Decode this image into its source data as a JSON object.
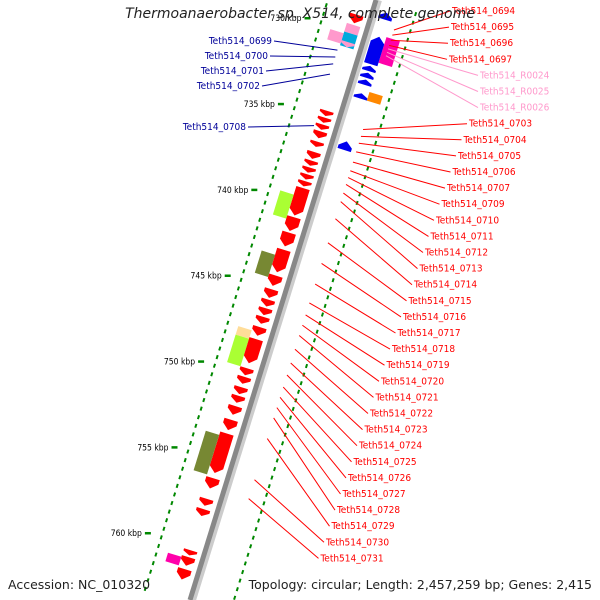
{
  "title": "Thermoanaerobacter sp. X514, complete genome",
  "footer": {
    "accession": "Accession: NC_010320",
    "summary": "Topology: circular; Length: 2,457,259 bp; Genes: 2,415"
  },
  "colors": {
    "red": "#ff0000",
    "blue": "#0000ee",
    "navy": "#000099",
    "pink": "#ff99cc",
    "magenta": "#ff00aa",
    "orange": "#ff8800",
    "cyan": "#00aadd",
    "lime": "#aaff33",
    "olive": "#778833",
    "peach": "#ffdd99",
    "tick": "#008800",
    "backbone": "#888888"
  },
  "kbp_ticks": [
    {
      "label": "730 kbp",
      "kbp": 730
    },
    {
      "label": "735 kbp",
      "kbp": 735
    },
    {
      "label": "740 kbp",
      "kbp": 740
    },
    {
      "label": "745 kbp",
      "kbp": 745
    },
    {
      "label": "750 kbp",
      "kbp": 750
    },
    {
      "label": "755 kbp",
      "kbp": 755
    },
    {
      "label": "760 kbp",
      "kbp": 760
    }
  ],
  "left_labels": [
    {
      "text": "Teth514_0699",
      "target_kbp": 731.2
    },
    {
      "text": "Teth514_0700",
      "target_kbp": 731.6
    },
    {
      "text": "Teth514_0701",
      "target_kbp": 732.0
    },
    {
      "text": "Teth514_0702",
      "target_kbp": 732.6
    },
    {
      "text": "Teth514_0708",
      "target_kbp": 735.6
    }
  ],
  "right_labels": [
    {
      "text": "Teth514_0694",
      "color": "red",
      "target_kbp": 729.2
    },
    {
      "text": "Teth514_0695",
      "color": "red",
      "target_kbp": 729.5
    },
    {
      "text": "Teth514_0696",
      "color": "red",
      "target_kbp": 729.8
    },
    {
      "text": "Teth514_0697",
      "color": "red",
      "target_kbp": 730.1
    },
    {
      "text": "Teth514_R0024",
      "color": "pink",
      "target_kbp": 730.3
    },
    {
      "text": "Teth514_R0025",
      "color": "pink",
      "target_kbp": 730.5
    },
    {
      "text": "Teth514_R0026",
      "color": "pink",
      "target_kbp": 730.7
    },
    {
      "text": "Teth514_0703",
      "color": "red",
      "target_kbp": 735.0
    },
    {
      "text": "Teth514_0704",
      "color": "red",
      "target_kbp": 735.4
    },
    {
      "text": "Teth514_0705",
      "color": "red",
      "target_kbp": 735.8
    },
    {
      "text": "Teth514_0706",
      "color": "red",
      "target_kbp": 736.3
    },
    {
      "text": "Teth514_0707",
      "color": "red",
      "target_kbp": 736.9
    },
    {
      "text": "Teth514_0709",
      "color": "red",
      "target_kbp": 737.4
    },
    {
      "text": "Teth514_0710",
      "color": "red",
      "target_kbp": 737.8
    },
    {
      "text": "Teth514_0711",
      "color": "red",
      "target_kbp": 738.2
    },
    {
      "text": "Teth514_0712",
      "color": "red",
      "target_kbp": 738.7
    },
    {
      "text": "Teth514_0713",
      "color": "red",
      "target_kbp": 739.2
    },
    {
      "text": "Teth514_0714",
      "color": "red",
      "target_kbp": 740.2
    },
    {
      "text": "Teth514_0715",
      "color": "red",
      "target_kbp": 741.6
    },
    {
      "text": "Teth514_0716",
      "color": "red",
      "target_kbp": 742.8
    },
    {
      "text": "Teth514_0717",
      "color": "red",
      "target_kbp": 744.0
    },
    {
      "text": "Teth514_0718",
      "color": "red",
      "target_kbp": 745.1
    },
    {
      "text": "Teth514_0719",
      "color": "red",
      "target_kbp": 745.8
    },
    {
      "text": "Teth514_0720",
      "color": "red",
      "target_kbp": 746.4
    },
    {
      "text": "Teth514_0721",
      "color": "red",
      "target_kbp": 747.0
    },
    {
      "text": "Teth514_0722",
      "color": "red",
      "target_kbp": 747.8
    },
    {
      "text": "Teth514_0723",
      "color": "red",
      "target_kbp": 748.6
    },
    {
      "text": "Teth514_0724",
      "color": "red",
      "target_kbp": 749.3
    },
    {
      "text": "Teth514_0725",
      "color": "red",
      "target_kbp": 750.0
    },
    {
      "text": "Teth514_0726",
      "color": "red",
      "target_kbp": 750.6
    },
    {
      "text": "Teth514_0727",
      "color": "red",
      "target_kbp": 751.2
    },
    {
      "text": "Teth514_0728",
      "color": "red",
      "target_kbp": 751.8
    },
    {
      "text": "Teth514_0729",
      "color": "red",
      "target_kbp": 753.0
    },
    {
      "text": "Teth514_0730",
      "color": "red",
      "target_kbp": 755.4
    },
    {
      "text": "Teth514_0731",
      "color": "red",
      "target_kbp": 756.5
    }
  ],
  "genes": [
    {
      "kbp": 728.4,
      "len": 0.4,
      "strand": 1,
      "color": "blue",
      "shape": "arrow"
    },
    {
      "kbp": 729.0,
      "len": 0.5,
      "strand": -1,
      "color": "red",
      "shape": "arrow"
    },
    {
      "kbp": 729.6,
      "len": 0.5,
      "strand": -1,
      "color": "pink",
      "shape": "box"
    },
    {
      "kbp": 730.1,
      "len": 0.8,
      "strand": -1,
      "color": "cyan",
      "shape": "box"
    },
    {
      "kbp": 730.2,
      "len": 0.6,
      "strand": -2,
      "color": "pink",
      "shape": "box"
    },
    {
      "kbp": 730.6,
      "len": 0.3,
      "strand": -1,
      "color": "pink",
      "shape": "arrow"
    },
    {
      "kbp": 729.7,
      "len": 1.5,
      "strand": 2,
      "color": "magenta",
      "shape": "box"
    },
    {
      "kbp": 729.8,
      "len": 1.6,
      "strand": 1,
      "color": "blue",
      "shape": "arrow"
    },
    {
      "kbp": 731.5,
      "len": 0.3,
      "strand": 1,
      "color": "blue",
      "shape": "arrow"
    },
    {
      "kbp": 731.9,
      "len": 0.3,
      "strand": 1,
      "color": "blue",
      "shape": "arrow"
    },
    {
      "kbp": 732.3,
      "len": 0.3,
      "strand": 1,
      "color": "blue",
      "shape": "arrow"
    },
    {
      "kbp": 732.9,
      "len": 0.5,
      "strand": 2,
      "color": "orange",
      "shape": "box"
    },
    {
      "kbp": 733.1,
      "len": 0.3,
      "strand": 1,
      "color": "blue",
      "shape": "arrow"
    },
    {
      "kbp": 735.9,
      "len": 0.5,
      "strand": 1,
      "color": "blue",
      "shape": "arrow"
    },
    {
      "kbp": 734.6,
      "len": 0.3,
      "strand": -1,
      "color": "red",
      "shape": "arrow"
    },
    {
      "kbp": 735.0,
      "len": 0.3,
      "strand": -1,
      "color": "red",
      "shape": "arrow"
    },
    {
      "kbp": 735.4,
      "len": 0.3,
      "strand": -1,
      "color": "red",
      "shape": "arrow"
    },
    {
      "kbp": 735.8,
      "len": 0.4,
      "strand": -1,
      "color": "red",
      "shape": "arrow"
    },
    {
      "kbp": 736.4,
      "len": 0.3,
      "strand": -1,
      "color": "red",
      "shape": "arrow"
    },
    {
      "kbp": 737.0,
      "len": 0.4,
      "strand": -1,
      "color": "red",
      "shape": "arrow"
    },
    {
      "kbp": 737.5,
      "len": 0.3,
      "strand": -1,
      "color": "red",
      "shape": "arrow"
    },
    {
      "kbp": 737.9,
      "len": 0.3,
      "strand": -1,
      "color": "red",
      "shape": "arrow"
    },
    {
      "kbp": 738.3,
      "len": 0.3,
      "strand": -1,
      "color": "red",
      "shape": "arrow"
    },
    {
      "kbp": 738.7,
      "len": 0.3,
      "strand": -1,
      "color": "red",
      "shape": "arrow"
    },
    {
      "kbp": 739.1,
      "len": 1.6,
      "strand": -1,
      "color": "red",
      "shape": "arrow"
    },
    {
      "kbp": 739.6,
      "len": 1.4,
      "strand": -2,
      "color": "lime",
      "shape": "box"
    },
    {
      "kbp": 740.8,
      "len": 0.8,
      "strand": -1,
      "color": "red",
      "shape": "arrow"
    },
    {
      "kbp": 741.7,
      "len": 0.8,
      "strand": -1,
      "color": "red",
      "shape": "arrow"
    },
    {
      "kbp": 742.7,
      "len": 1.3,
      "strand": -1,
      "color": "red",
      "shape": "arrow"
    },
    {
      "kbp": 743.1,
      "len": 1.3,
      "strand": -2,
      "color": "olive",
      "shape": "box"
    },
    {
      "kbp": 744.2,
      "len": 0.6,
      "strand": -1,
      "color": "red",
      "shape": "arrow"
    },
    {
      "kbp": 745.0,
      "len": 0.5,
      "strand": -1,
      "color": "red",
      "shape": "arrow"
    },
    {
      "kbp": 745.6,
      "len": 0.4,
      "strand": -1,
      "color": "red",
      "shape": "arrow"
    },
    {
      "kbp": 746.1,
      "len": 0.4,
      "strand": -1,
      "color": "red",
      "shape": "arrow"
    },
    {
      "kbp": 746.6,
      "len": 0.4,
      "strand": -1,
      "color": "red",
      "shape": "arrow"
    },
    {
      "kbp": 747.2,
      "len": 0.5,
      "strand": -1,
      "color": "red",
      "shape": "arrow"
    },
    {
      "kbp": 747.5,
      "len": 0.5,
      "strand": -2,
      "color": "peach",
      "shape": "box"
    },
    {
      "kbp": 748.0,
      "len": 1.6,
      "strand": -2,
      "color": "lime",
      "shape": "box"
    },
    {
      "kbp": 747.9,
      "len": 1.4,
      "strand": -1,
      "color": "red",
      "shape": "arrow"
    },
    {
      "kbp": 749.6,
      "len": 0.4,
      "strand": -1,
      "color": "red",
      "shape": "arrow"
    },
    {
      "kbp": 750.1,
      "len": 0.4,
      "strand": -1,
      "color": "red",
      "shape": "arrow"
    },
    {
      "kbp": 750.7,
      "len": 0.4,
      "strand": -1,
      "color": "red",
      "shape": "arrow"
    },
    {
      "kbp": 751.2,
      "len": 0.4,
      "strand": -1,
      "color": "red",
      "shape": "arrow"
    },
    {
      "kbp": 751.8,
      "len": 0.5,
      "strand": -1,
      "color": "red",
      "shape": "arrow"
    },
    {
      "kbp": 752.6,
      "len": 0.6,
      "strand": -1,
      "color": "red",
      "shape": "arrow"
    },
    {
      "kbp": 753.4,
      "len": 2.3,
      "strand": -1,
      "color": "red",
      "shape": "arrow"
    },
    {
      "kbp": 753.6,
      "len": 2.3,
      "strand": -2,
      "color": "olive",
      "shape": "box"
    },
    {
      "kbp": 756.0,
      "len": 0.6,
      "strand": -1,
      "color": "red",
      "shape": "arrow"
    },
    {
      "kbp": 757.2,
      "len": 0.4,
      "strand": -1,
      "color": "red",
      "shape": "arrow"
    },
    {
      "kbp": 757.8,
      "len": 0.4,
      "strand": -1,
      "color": "red",
      "shape": "arrow"
    },
    {
      "kbp": 760.2,
      "len": 0.3,
      "strand": -1,
      "color": "red",
      "shape": "arrow"
    },
    {
      "kbp": 760.6,
      "len": 0.5,
      "strand": -1,
      "color": "red",
      "shape": "arrow"
    },
    {
      "kbp": 760.7,
      "len": 0.5,
      "strand": -2,
      "color": "magenta",
      "shape": "box"
    },
    {
      "kbp": 761.3,
      "len": 0.6,
      "strand": -1,
      "color": "red",
      "shape": "arrow"
    }
  ]
}
